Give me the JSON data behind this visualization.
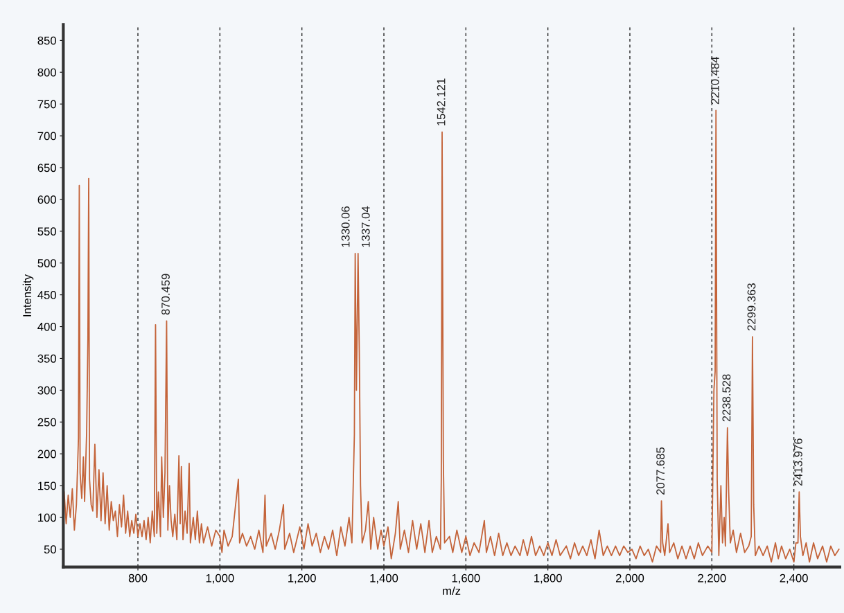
{
  "chart_data": {
    "type": "line",
    "xlabel": "m/z",
    "ylabel": "Intensity",
    "xlim": [
      618,
      2512
    ],
    "ylim": [
      22,
      875
    ],
    "xticks": [
      800,
      {
        "value": 1000,
        "label": "1,000"
      },
      {
        "value": 1200,
        "label": "1,200"
      },
      {
        "value": 1400,
        "label": "1,400"
      },
      {
        "value": 1600,
        "label": "1,600"
      },
      {
        "value": 1800,
        "label": "1,800"
      },
      {
        "value": 2000,
        "label": "2,000"
      },
      {
        "value": 2200,
        "label": "2,200"
      },
      {
        "value": 2400,
        "label": "2,400"
      }
    ],
    "yticks": [
      50,
      100,
      150,
      200,
      250,
      300,
      350,
      400,
      450,
      500,
      550,
      600,
      650,
      700,
      750,
      800,
      850
    ],
    "grid": "x",
    "series": [
      {
        "color": "#c4643a",
        "x": [
          620,
          625,
          630,
          635,
          640,
          645,
          650,
          655,
          657,
          659,
          663,
          667,
          670,
          675,
          678,
          680,
          682,
          686,
          690,
          695,
          700,
          705,
          710,
          715,
          720,
          725,
          730,
          735,
          740,
          745,
          750,
          755,
          760,
          765,
          770,
          775,
          780,
          785,
          790,
          795,
          800,
          805,
          810,
          815,
          820,
          825,
          830,
          835,
          840,
          843,
          846,
          850,
          855,
          858,
          862,
          866,
          870,
          873,
          877,
          881,
          885,
          890,
          895,
          900,
          903,
          906,
          910,
          915,
          920,
          925,
          928,
          935,
          940,
          945,
          950,
          955,
          960,
          970,
          980,
          990,
          1000,
          1005,
          1010,
          1020,
          1030,
          1045,
          1048,
          1055,
          1065,
          1075,
          1085,
          1095,
          1105,
          1110,
          1113,
          1125,
          1135,
          1145,
          1155,
          1158,
          1170,
          1180,
          1195,
          1205,
          1215,
          1225,
          1235,
          1245,
          1255,
          1265,
          1275,
          1285,
          1295,
          1305,
          1315,
          1322,
          1328,
          1330,
          1333,
          1337,
          1340,
          1343,
          1347,
          1355,
          1362,
          1368,
          1375,
          1385,
          1393,
          1400,
          1410,
          1418,
          1428,
          1435,
          1440,
          1450,
          1460,
          1470,
          1480,
          1490,
          1500,
          1510,
          1518,
          1528,
          1538,
          1540,
          1542,
          1545,
          1548,
          1560,
          1568,
          1578,
          1590,
          1600,
          1610,
          1620,
          1632,
          1645,
          1650,
          1660,
          1670,
          1680,
          1690,
          1700,
          1710,
          1720,
          1732,
          1740,
          1750,
          1760,
          1770,
          1780,
          1790,
          1800,
          1810,
          1820,
          1830,
          1845,
          1855,
          1865,
          1875,
          1885,
          1895,
          1905,
          1915,
          1925,
          1935,
          1945,
          1955,
          1965,
          1975,
          1985,
          1995,
          2005,
          2015,
          2025,
          2035,
          2045,
          2055,
          2065,
          2075,
          2077,
          2080,
          2085,
          2093,
          2097,
          2107,
          2117,
          2127,
          2137,
          2147,
          2157,
          2167,
          2177,
          2190,
          2200,
          2205,
          2208,
          2210,
          2213,
          2217,
          2222,
          2226,
          2230,
          2233,
          2238,
          2241,
          2245,
          2252,
          2260,
          2270,
          2280,
          2290,
          2296,
          2299,
          2302,
          2306,
          2315,
          2325,
          2335,
          2345,
          2355,
          2362,
          2370,
          2380,
          2390,
          2400,
          2405,
          2410,
          2413,
          2416,
          2422,
          2430,
          2438,
          2448,
          2458,
          2470,
          2480,
          2490,
          2500,
          2510
        ],
        "values": [
          140,
          90,
          135,
          100,
          145,
          80,
          120,
          225,
          622,
          170,
          130,
          195,
          125,
          235,
          380,
          633,
          160,
          120,
          110,
          215,
          100,
          175,
          95,
          170,
          90,
          150,
          80,
          125,
          95,
          110,
          70,
          120,
          85,
          135,
          75,
          110,
          70,
          95,
          75,
          105,
          70,
          90,
          70,
          95,
          65,
          100,
          60,
          110,
          70,
          403,
          75,
          140,
          70,
          195,
          100,
          170,
          409,
          80,
          150,
          95,
          70,
          105,
          65,
          197,
          90,
          180,
          65,
          110,
          75,
          185,
          60,
          100,
          65,
          110,
          60,
          90,
          60,
          85,
          55,
          80,
          70,
          45,
          80,
          55,
          70,
          160,
          60,
          75,
          55,
          70,
          50,
          80,
          45,
          135,
          55,
          75,
          50,
          80,
          120,
          50,
          75,
          45,
          85,
          50,
          90,
          55,
          75,
          45,
          70,
          50,
          80,
          40,
          85,
          55,
          100,
          60,
          230,
          515,
          300,
          515,
          360,
          150,
          60,
          80,
          125,
          50,
          100,
          50,
          80,
          55,
          85,
          35,
          75,
          125,
          50,
          80,
          45,
          95,
          50,
          90,
          45,
          95,
          45,
          70,
          50,
          160,
          706,
          190,
          60,
          70,
          45,
          80,
          45,
          70,
          40,
          60,
          45,
          95,
          45,
          70,
          40,
          75,
          40,
          60,
          40,
          55,
          40,
          65,
          40,
          70,
          40,
          55,
          40,
          60,
          40,
          65,
          40,
          55,
          35,
          60,
          40,
          55,
          40,
          65,
          35,
          80,
          40,
          55,
          40,
          55,
          40,
          55,
          45,
          50,
          35,
          55,
          40,
          50,
          30,
          55,
          45,
          126,
          60,
          40,
          90,
          45,
          60,
          35,
          55,
          35,
          55,
          35,
          60,
          40,
          55,
          45,
          300,
          330,
          740,
          160,
          40,
          150,
          60,
          100,
          55,
          241,
          140,
          60,
          80,
          45,
          75,
          45,
          55,
          70,
          384,
          120,
          40,
          55,
          40,
          55,
          30,
          60,
          35,
          55,
          35,
          50,
          30,
          60,
          60,
          140,
          70,
          40,
          60,
          30,
          60,
          35,
          55,
          30,
          55,
          40,
          50
        ]
      }
    ],
    "annotations": [
      {
        "text": "870.459",
        "x": 870,
        "y": 409
      },
      {
        "text": "1330.06",
        "x": 1330,
        "y": 515
      },
      {
        "text": "1337.04",
        "x": 1337,
        "y": 515
      },
      {
        "text": "1542.121",
        "x": 1542,
        "y": 706
      },
      {
        "text": "2077.685",
        "x": 2077,
        "y": 126
      },
      {
        "text": "2210.484",
        "x": 2210,
        "y": 740
      },
      {
        "text": "2238.528",
        "x": 2238,
        "y": 241
      },
      {
        "text": "2299.363",
        "x": 2299,
        "y": 384
      },
      {
        "text": "2413.976",
        "x": 2413,
        "y": 140
      }
    ]
  }
}
